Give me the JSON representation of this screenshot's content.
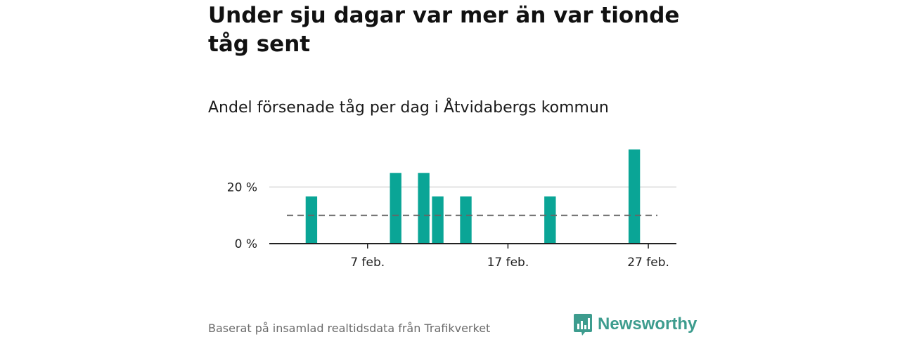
{
  "title": "Under sju dagar var mer än var tionde tåg sent",
  "subtitle": "Andel försenade tåg per dag i Åtvidabergs kommun",
  "footer": {
    "source": "Baserat på insamlad realtidsdata från Trafikverket",
    "brand": "Newsworthy",
    "brand_icon": "bar-chart-logo-icon"
  },
  "colors": {
    "bar": "#0aa596",
    "reference_line": "#666666",
    "gridline": "#d9d9d9",
    "brand": "#3d9c8e"
  },
  "chart_data": {
    "type": "bar",
    "title": "Andel försenade tåg per dag i Åtvidabergs kommun",
    "xlabel": "",
    "ylabel": "",
    "x_range": [
      "2024-01-31",
      "2024-02-29"
    ],
    "ylim": [
      0,
      34
    ],
    "y_ticks": [
      {
        "value": 0,
        "label": "0 %"
      },
      {
        "value": 20,
        "label": "20 %"
      }
    ],
    "x_ticks": [
      {
        "date": "2024-02-07",
        "label": "7 feb."
      },
      {
        "date": "2024-02-17",
        "label": "17 feb."
      },
      {
        "date": "2024-02-27",
        "label": "27 feb."
      }
    ],
    "series": [
      {
        "points": [
          {
            "date": "2024-02-03",
            "value": 16.7
          },
          {
            "date": "2024-02-09",
            "value": 25.0
          },
          {
            "date": "2024-02-11",
            "value": 25.0
          },
          {
            "date": "2024-02-12",
            "value": 16.7
          },
          {
            "date": "2024-02-14",
            "value": 16.7
          },
          {
            "date": "2024-02-20",
            "value": 16.7
          },
          {
            "date": "2024-02-26",
            "value": 33.3
          }
        ]
      }
    ],
    "reference_line": {
      "value": 10,
      "style": "dashed"
    },
    "grid": true,
    "legend": "none"
  }
}
